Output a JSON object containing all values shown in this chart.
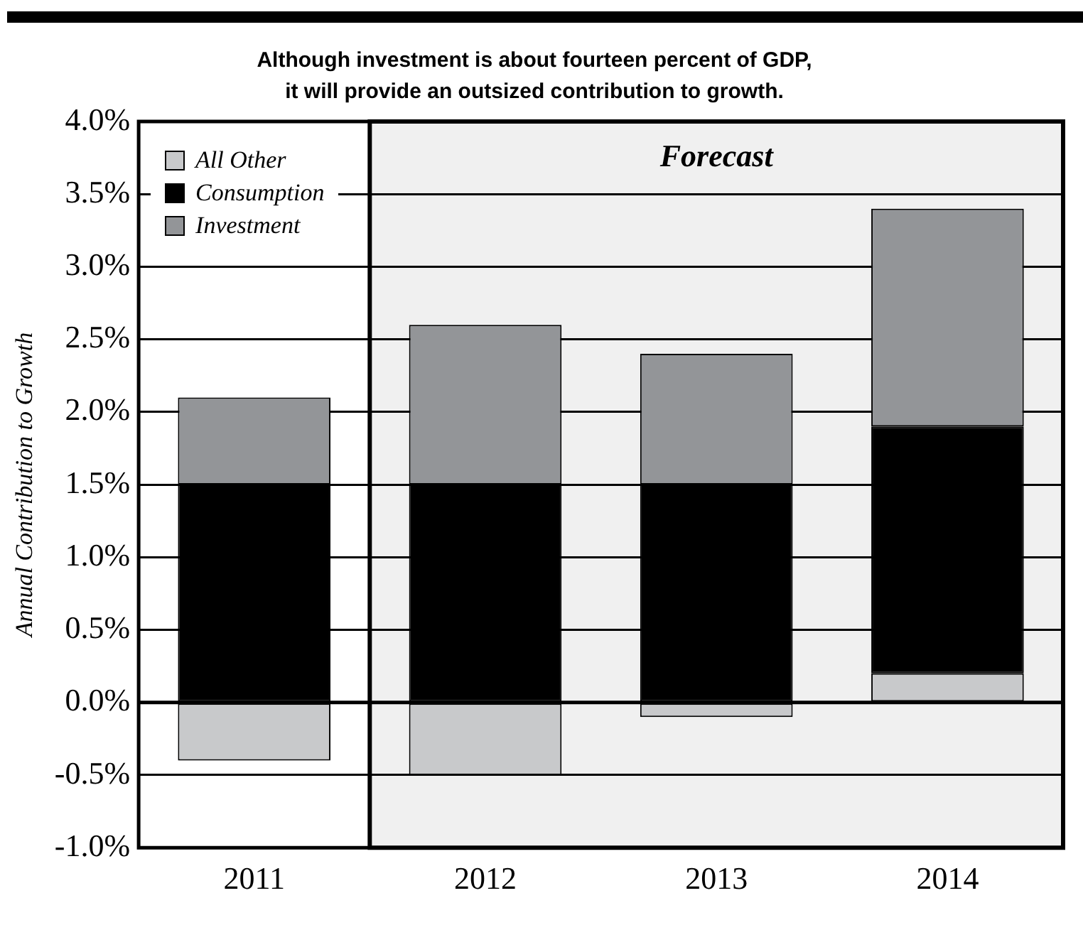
{
  "chart_data": {
    "type": "bar",
    "title": "Although investment is about fourteen percent of GDP,\nit will provide an outsized contribution to growth.",
    "ylabel": "Annual Contribution to Growth",
    "categories": [
      "2011",
      "2012",
      "2013",
      "2014"
    ],
    "stacked": true,
    "series": [
      {
        "name": "All Other",
        "color": "#c8c9cb",
        "values": [
          -0.4,
          -0.5,
          -0.1,
          0.2
        ]
      },
      {
        "name": "Consumption",
        "color": "#000000",
        "values": [
          1.5,
          1.5,
          1.5,
          1.7
        ]
      },
      {
        "name": "Investment",
        "color": "#939598",
        "values": [
          0.6,
          1.1,
          0.9,
          1.5
        ]
      }
    ],
    "ylim": [
      -1.0,
      4.0
    ],
    "yticks": [
      {
        "value": -1.0,
        "label": "-1.0%"
      },
      {
        "value": -0.5,
        "label": "-0.5%"
      },
      {
        "value": 0,
        "label": "0.0%"
      },
      {
        "value": 0.5,
        "label": "0.5%"
      },
      {
        "value": 1.0,
        "label": "1.0%"
      },
      {
        "value": 1.5,
        "label": "1.5%"
      },
      {
        "value": 2.0,
        "label": "2.0%"
      },
      {
        "value": 2.5,
        "label": "2.5%"
      },
      {
        "value": 3.0,
        "label": "3.0%"
      },
      {
        "value": 3.5,
        "label": "3.5%"
      },
      {
        "value": 4.0,
        "label": "4.0%"
      }
    ],
    "bands": [
      {
        "axis": "x",
        "from": "2012",
        "to": "2014",
        "label": "Forecast",
        "color": "#f0f0f0"
      }
    ],
    "grid": "y",
    "legend": "top left"
  }
}
